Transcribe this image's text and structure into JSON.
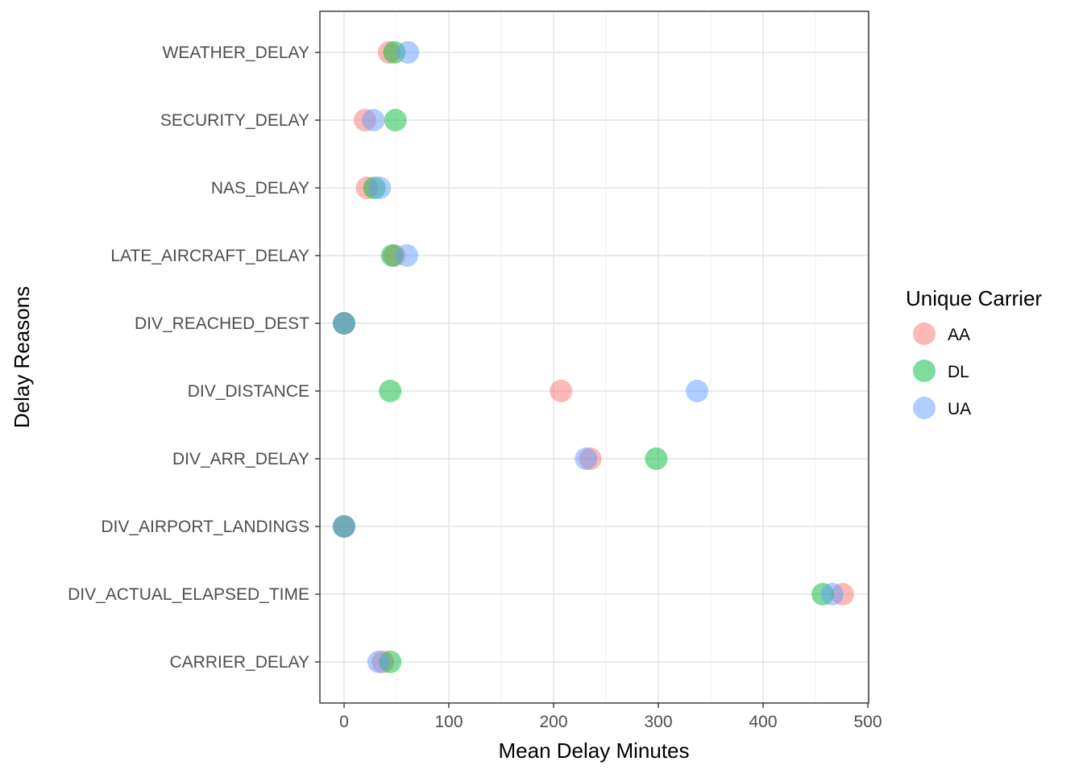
{
  "chart_data": {
    "type": "scatter",
    "xlabel": "Mean Delay Minutes",
    "ylabel": "Delay Reasons",
    "xlim": [
      -23,
      500
    ],
    "x_ticks": [
      0,
      100,
      200,
      300,
      400,
      500
    ],
    "grid": true,
    "categories": [
      "CARRIER_DELAY",
      "DIV_ACTUAL_ELAPSED_TIME",
      "DIV_AIRPORT_LANDINGS",
      "DIV_ARR_DELAY",
      "DIV_DISTANCE",
      "DIV_REACHED_DEST",
      "LATE_AIRCRAFT_DELAY",
      "NAS_DELAY",
      "SECURITY_DELAY",
      "WEATHER_DELAY"
    ],
    "legend": {
      "title": "Unique Carrier",
      "position": "right"
    },
    "series": [
      {
        "name": "AA",
        "color": "#F8766D",
        "values": [
          37,
          476,
          0,
          235,
          207,
          0,
          48,
          22,
          20,
          43
        ]
      },
      {
        "name": "DL",
        "color": "#00BA38",
        "values": [
          44,
          457,
          0,
          298,
          44,
          0,
          46,
          29,
          49,
          48
        ]
      },
      {
        "name": "UA",
        "color": "#619CFF",
        "values": [
          33,
          466,
          0,
          231,
          337,
          0,
          60,
          34,
          28,
          61
        ]
      }
    ]
  }
}
